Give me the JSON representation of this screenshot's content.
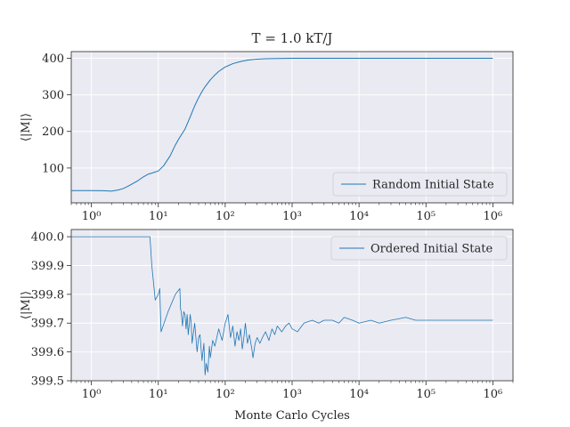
{
  "chart_data": [
    {
      "type": "line",
      "title": "T = 1.0 kT/J",
      "ylabel": "⟨|M|⟩",
      "xlabel": "",
      "xscale": "log",
      "xlim": [
        0.5,
        2000000
      ],
      "ylim": [
        5,
        418
      ],
      "xticks": [
        1,
        10,
        100,
        1000,
        10000,
        100000,
        1000000
      ],
      "xtick_labels": [
        "10⁰",
        "10¹",
        "10²",
        "10³",
        "10⁴",
        "10⁵",
        "10⁶"
      ],
      "yticks": [
        100,
        200,
        300,
        400
      ],
      "ytick_labels": [
        "100",
        "200",
        "300",
        "400"
      ],
      "grid": true,
      "legend_position": "lower-right",
      "series": [
        {
          "name": "Random Initial State",
          "color": "#1f77b4",
          "x": [
            0.5,
            1,
            1.5,
            2,
            2.5,
            3,
            3.5,
            4,
            5,
            6,
            7,
            8,
            10,
            12,
            15,
            18,
            20,
            25,
            30,
            35,
            40,
            45,
            50,
            60,
            70,
            80,
            100,
            130,
            170,
            220,
            300,
            400,
            600,
            1000,
            2000,
            5000,
            10000,
            100000,
            1000000
          ],
          "y": [
            38.5,
            38.5,
            38,
            37,
            40,
            44,
            50,
            56,
            66,
            76,
            83,
            86,
            92,
            106,
            133,
            163,
            178,
            206,
            240,
            270,
            292,
            309,
            322,
            341,
            354,
            364,
            376,
            385,
            391,
            395,
            397.5,
            398.6,
            399.3,
            399.7,
            399.85,
            399.9,
            399.92,
            399.93,
            399.93
          ]
        }
      ]
    },
    {
      "type": "line",
      "title": "",
      "ylabel": "⟨|M|⟩",
      "xlabel": "Monte Carlo Cycles",
      "xscale": "log",
      "xlim": [
        0.5,
        2000000
      ],
      "ylim": [
        399.5,
        400.025
      ],
      "xticks": [
        1,
        10,
        100,
        1000,
        10000,
        100000,
        1000000
      ],
      "xtick_labels": [
        "10⁰",
        "10¹",
        "10²",
        "10³",
        "10⁴",
        "10⁵",
        "10⁶"
      ],
      "yticks": [
        399.5,
        399.6,
        399.7,
        399.8,
        399.9,
        400.0
      ],
      "ytick_labels": [
        "399.5",
        "399.6",
        "399.7",
        "399.8",
        "399.9",
        "400.0"
      ],
      "grid": true,
      "legend_position": "upper-right",
      "series": [
        {
          "name": "Ordered Initial State",
          "color": "#1f77b4",
          "x": [
            0.5,
            1,
            2,
            3,
            5,
            7,
            7.5,
            8,
            9,
            10,
            10.5,
            11,
            14,
            18,
            21,
            21.5,
            22,
            23,
            24,
            25,
            26,
            27,
            28,
            30,
            31,
            32,
            35,
            38,
            40,
            42,
            45,
            48,
            50,
            52,
            55,
            58,
            60,
            65,
            70,
            80,
            90,
            100,
            110,
            120,
            130,
            140,
            150,
            160,
            170,
            180,
            190,
            200,
            215,
            230,
            250,
            260,
            280,
            300,
            330,
            360,
            400,
            450,
            500,
            550,
            600,
            700,
            800,
            900,
            1000,
            1200,
            1500,
            2000,
            2500,
            3000,
            4000,
            5000,
            6000,
            8000,
            10000,
            15000,
            20000,
            30000,
            50000,
            70000,
            100000,
            200000,
            500000,
            1000000
          ],
          "y": [
            400.0,
            400.0,
            400.0,
            400.0,
            400.0,
            400.0,
            400.0,
            399.9,
            399.78,
            399.8,
            399.82,
            399.67,
            399.74,
            399.8,
            399.82,
            399.75,
            399.74,
            399.69,
            399.74,
            399.73,
            399.68,
            399.73,
            399.66,
            399.73,
            399.7,
            399.63,
            399.7,
            399.6,
            399.65,
            399.66,
            399.57,
            399.63,
            399.52,
            399.56,
            399.53,
            399.62,
            399.58,
            399.64,
            399.62,
            399.68,
            399.64,
            399.7,
            399.73,
            399.65,
            399.69,
            399.62,
            399.67,
            399.64,
            399.68,
            399.61,
            399.65,
            399.7,
            399.63,
            399.66,
            399.61,
            399.58,
            399.63,
            399.65,
            399.63,
            399.65,
            399.67,
            399.64,
            399.68,
            399.66,
            399.69,
            399.67,
            399.69,
            399.7,
            399.68,
            399.67,
            399.7,
            399.71,
            399.7,
            399.71,
            399.71,
            399.7,
            399.72,
            399.71,
            399.7,
            399.71,
            399.7,
            399.71,
            399.72,
            399.71,
            399.71,
            399.71,
            399.71,
            399.71
          ]
        }
      ]
    }
  ]
}
